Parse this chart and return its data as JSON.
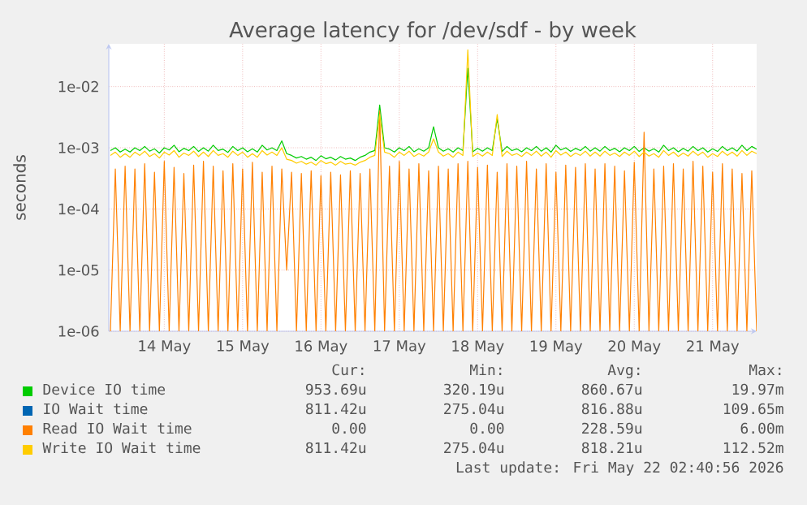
{
  "chart_data": {
    "type": "line",
    "title": "Average latency for /dev/sdf - by week",
    "ylabel": "seconds",
    "log": "y",
    "grid": true,
    "legend": "bottom",
    "marker": "none",
    "line_style": "solid",
    "xlim": [
      "2026-05-13T19:00",
      "2026-05-22T01:30"
    ],
    "xticks": [
      {
        "value": "2026-05-14T12:00",
        "label": "14 May"
      },
      {
        "value": "2026-05-15T12:00",
        "label": "15 May"
      },
      {
        "value": "2026-05-16T12:00",
        "label": "16 May"
      },
      {
        "value": "2026-05-17T12:00",
        "label": "17 May"
      },
      {
        "value": "2026-05-18T12:00",
        "label": "18 May"
      },
      {
        "value": "2026-05-19T12:00",
        "label": "19 May"
      },
      {
        "value": "2026-05-20T12:00",
        "label": "20 May"
      },
      {
        "value": "2026-05-21T12:00",
        "label": "21 May"
      }
    ],
    "ylim": [
      1e-06,
      0.05
    ],
    "yticks": [
      {
        "value": 1e-06,
        "label": "1e-06"
      },
      {
        "value": 1e-05,
        "label": "1e-05"
      },
      {
        "value": 0.0001,
        "label": "1e-04"
      },
      {
        "value": 0.001,
        "label": "1e-03"
      },
      {
        "value": 0.01,
        "label": "1e-02"
      }
    ],
    "x": [
      "2026-05-13T19:30",
      "2026-05-13T21:00",
      "2026-05-13T22:30",
      "2026-05-14T00:00",
      "2026-05-14T01:30",
      "2026-05-14T03:00",
      "2026-05-14T04:30",
      "2026-05-14T06:00",
      "2026-05-14T07:30",
      "2026-05-14T09:00",
      "2026-05-14T10:30",
      "2026-05-14T12:00",
      "2026-05-14T13:30",
      "2026-05-14T15:00",
      "2026-05-14T16:30",
      "2026-05-14T18:00",
      "2026-05-14T19:30",
      "2026-05-14T21:00",
      "2026-05-14T22:30",
      "2026-05-15T00:00",
      "2026-05-15T01:30",
      "2026-05-15T03:00",
      "2026-05-15T04:30",
      "2026-05-15T06:00",
      "2026-05-15T07:30",
      "2026-05-15T09:00",
      "2026-05-15T10:30",
      "2026-05-15T12:00",
      "2026-05-15T13:30",
      "2026-05-15T15:00",
      "2026-05-15T16:30",
      "2026-05-15T18:00",
      "2026-05-15T19:30",
      "2026-05-15T21:00",
      "2026-05-15T22:30",
      "2026-05-16T00:00",
      "2026-05-16T01:30",
      "2026-05-16T03:00",
      "2026-05-16T04:30",
      "2026-05-16T06:00",
      "2026-05-16T07:30",
      "2026-05-16T09:00",
      "2026-05-16T10:30",
      "2026-05-16T12:00",
      "2026-05-16T13:30",
      "2026-05-16T15:00",
      "2026-05-16T16:30",
      "2026-05-16T18:00",
      "2026-05-16T19:30",
      "2026-05-16T21:00",
      "2026-05-16T22:30",
      "2026-05-17T00:00",
      "2026-05-17T01:30",
      "2026-05-17T03:00",
      "2026-05-17T04:30",
      "2026-05-17T06:00",
      "2026-05-17T07:30",
      "2026-05-17T09:00",
      "2026-05-17T10:30",
      "2026-05-17T12:00",
      "2026-05-17T13:30",
      "2026-05-17T15:00",
      "2026-05-17T16:30",
      "2026-05-17T18:00",
      "2026-05-17T19:30",
      "2026-05-17T21:00",
      "2026-05-17T22:30",
      "2026-05-18T00:00",
      "2026-05-18T01:30",
      "2026-05-18T03:00",
      "2026-05-18T04:30",
      "2026-05-18T06:00",
      "2026-05-18T07:30",
      "2026-05-18T09:00",
      "2026-05-18T10:30",
      "2026-05-18T12:00",
      "2026-05-18T13:30",
      "2026-05-18T15:00",
      "2026-05-18T16:30",
      "2026-05-18T18:00",
      "2026-05-18T19:30",
      "2026-05-18T21:00",
      "2026-05-18T22:30",
      "2026-05-19T00:00",
      "2026-05-19T01:30",
      "2026-05-19T03:00",
      "2026-05-19T04:30",
      "2026-05-19T06:00",
      "2026-05-19T07:30",
      "2026-05-19T09:00",
      "2026-05-19T10:30",
      "2026-05-19T12:00",
      "2026-05-19T13:30",
      "2026-05-19T15:00",
      "2026-05-19T16:30",
      "2026-05-19T18:00",
      "2026-05-19T19:30",
      "2026-05-19T21:00",
      "2026-05-19T22:30",
      "2026-05-20T00:00",
      "2026-05-20T01:30",
      "2026-05-20T03:00",
      "2026-05-20T04:30",
      "2026-05-20T06:00",
      "2026-05-20T07:30",
      "2026-05-20T09:00",
      "2026-05-20T10:30",
      "2026-05-20T12:00",
      "2026-05-20T13:30",
      "2026-05-20T15:00",
      "2026-05-20T16:30",
      "2026-05-20T18:00",
      "2026-05-20T19:30",
      "2026-05-20T21:00",
      "2026-05-20T22:30",
      "2026-05-21T00:00",
      "2026-05-21T01:30",
      "2026-05-21T03:00",
      "2026-05-21T04:30",
      "2026-05-21T06:00",
      "2026-05-21T07:30",
      "2026-05-21T09:00",
      "2026-05-21T10:30",
      "2026-05-21T12:00",
      "2026-05-21T13:30",
      "2026-05-21T15:00",
      "2026-05-21T16:30",
      "2026-05-21T18:00",
      "2026-05-21T19:30",
      "2026-05-21T21:00",
      "2026-05-21T22:30",
      "2026-05-22T00:00",
      "2026-05-22T01:30"
    ],
    "series": [
      {
        "name": "Device IO time",
        "color": "#00cc00",
        "values": [
          0.0009,
          0.001,
          0.00085,
          0.00095,
          0.00085,
          0.001,
          0.0009,
          0.00105,
          0.00088,
          0.00096,
          0.00082,
          0.001,
          0.00092,
          0.0011,
          0.00086,
          0.00098,
          0.0009,
          0.00105,
          0.00087,
          0.001,
          0.00088,
          0.0011,
          0.0009,
          0.00095,
          0.00084,
          0.00105,
          0.0009,
          0.001,
          0.00086,
          0.00096,
          0.00085,
          0.0011,
          0.00092,
          0.001,
          0.0009,
          0.0013,
          0.0008,
          0.00075,
          0.00068,
          0.00072,
          0.00065,
          0.0007,
          0.00062,
          0.00074,
          0.00066,
          0.0007,
          0.00063,
          0.00072,
          0.00065,
          0.00068,
          0.00062,
          0.0007,
          0.00075,
          0.00085,
          0.0009,
          0.005,
          0.001,
          0.00095,
          0.00085,
          0.001,
          0.0009,
          0.00105,
          0.00086,
          0.00096,
          0.00088,
          0.001,
          0.0022,
          0.001,
          0.00088,
          0.00096,
          0.00085,
          0.001,
          0.0009,
          0.02,
          0.00086,
          0.00098,
          0.00088,
          0.001,
          0.0009,
          0.003,
          0.00087,
          0.00105,
          0.0009,
          0.00096,
          0.00086,
          0.001,
          0.0009,
          0.00105,
          0.00088,
          0.001,
          0.00085,
          0.0011,
          0.00092,
          0.001,
          0.00087,
          0.00098,
          0.0009,
          0.00105,
          0.00088,
          0.001,
          0.00088,
          0.00105,
          0.0009,
          0.00098,
          0.00086,
          0.001,
          0.0009,
          0.00105,
          0.00087,
          0.001,
          0.00088,
          0.00096,
          0.00085,
          0.0011,
          0.0009,
          0.001,
          0.00086,
          0.00098,
          0.00088,
          0.00105,
          0.0009,
          0.001,
          0.00085,
          0.00096,
          0.00087,
          0.00105,
          0.0009,
          0.001,
          0.00088,
          0.0011,
          0.0009,
          0.00105,
          0.00095
        ]
      },
      {
        "name": "IO Wait time",
        "color": "#0066b3",
        "values": [
          null,
          null,
          null,
          null,
          null,
          null,
          null,
          null,
          null,
          null,
          null,
          null,
          null,
          null,
          null,
          null,
          null,
          null,
          null,
          null,
          null,
          null,
          null,
          null,
          null,
          null,
          null,
          null,
          null,
          null,
          null,
          null,
          null,
          null,
          null,
          null,
          null,
          null,
          null,
          null,
          null,
          null,
          null,
          null,
          null,
          null,
          null,
          null,
          null,
          null,
          null,
          null,
          null,
          null,
          null,
          null,
          null,
          null,
          null,
          null,
          null,
          null,
          null,
          null,
          null,
          null,
          null,
          null,
          null,
          null,
          null,
          null,
          null,
          null,
          null,
          null,
          null,
          null,
          null,
          null,
          null,
          null,
          null,
          null,
          null,
          null,
          null,
          null,
          null,
          null,
          null,
          null,
          null,
          null,
          null,
          null,
          null,
          null,
          null,
          null,
          null,
          null,
          null,
          null,
          null,
          null,
          null,
          null,
          null,
          null,
          null,
          null,
          null,
          null,
          null,
          null,
          null,
          null,
          null,
          null,
          null,
          null,
          null,
          null,
          null,
          null,
          null,
          null,
          null,
          null,
          null,
          null,
          null
        ]
      },
      {
        "name": "Read IO Wait time",
        "color": "#ff8000",
        "values": [
          1e-06,
          0.00045,
          1e-06,
          0.0005,
          1e-06,
          0.00045,
          1e-06,
          0.00055,
          1e-06,
          0.0004,
          1e-06,
          0.0006,
          1e-06,
          0.00048,
          1e-06,
          0.00038,
          1e-06,
          0.00052,
          1e-06,
          0.0006,
          1e-06,
          0.0005,
          1e-06,
          0.00042,
          1e-06,
          0.00055,
          1e-06,
          0.00045,
          1e-06,
          0.00058,
          1e-06,
          0.0004,
          1e-06,
          0.0005,
          1e-06,
          0.00045,
          1e-05,
          0.0004,
          1e-06,
          0.00038,
          1e-06,
          0.00042,
          1e-06,
          0.00035,
          1e-06,
          0.0004,
          1e-06,
          0.00036,
          1e-06,
          0.00042,
          1e-06,
          0.00038,
          1e-06,
          0.00045,
          1e-06,
          0.004,
          1e-06,
          0.0005,
          1e-06,
          0.0006,
          1e-06,
          0.00045,
          1e-06,
          0.00055,
          1e-06,
          0.00042,
          1e-06,
          0.0005,
          1e-06,
          0.00045,
          1e-06,
          0.00055,
          1e-06,
          0.0006,
          1e-06,
          0.00048,
          1e-06,
          0.00052,
          1e-06,
          0.0004,
          1e-06,
          0.00055,
          1e-06,
          0.0005,
          1e-06,
          0.0006,
          1e-06,
          0.00045,
          1e-06,
          0.00055,
          1e-06,
          0.0004,
          1e-06,
          0.00052,
          1e-06,
          0.00048,
          1e-06,
          0.00055,
          1e-06,
          0.00045,
          1e-06,
          0.00055,
          1e-06,
          0.0005,
          1e-06,
          0.00042,
          1e-06,
          0.00058,
          1e-06,
          0.0018,
          1e-06,
          0.00045,
          1e-06,
          0.0005,
          1e-06,
          0.00055,
          1e-06,
          0.00045,
          1e-06,
          0.0006,
          1e-06,
          0.0005,
          1e-06,
          0.0004,
          1e-06,
          0.00055,
          1e-06,
          0.00045,
          1e-06,
          0.00038,
          1e-06,
          0.00042,
          1e-06
        ]
      },
      {
        "name": "Write IO Wait time",
        "color": "#ffcc00",
        "values": [
          0.00075,
          0.00085,
          0.0007,
          0.0008,
          0.0007,
          0.00085,
          0.00075,
          0.00088,
          0.00072,
          0.0008,
          0.00068,
          0.00085,
          0.00076,
          0.0009,
          0.0007,
          0.00082,
          0.00075,
          0.00088,
          0.00072,
          0.00085,
          0.00072,
          0.0009,
          0.00075,
          0.0008,
          0.0007,
          0.00088,
          0.00075,
          0.00085,
          0.0007,
          0.0008,
          0.0007,
          0.0009,
          0.00076,
          0.00085,
          0.00075,
          0.001,
          0.00065,
          0.00062,
          0.00056,
          0.0006,
          0.00054,
          0.00058,
          0.00052,
          0.00062,
          0.00055,
          0.00058,
          0.00052,
          0.0006,
          0.00054,
          0.00056,
          0.00052,
          0.00058,
          0.00062,
          0.0007,
          0.00075,
          0.0035,
          0.00085,
          0.0008,
          0.0007,
          0.00085,
          0.00075,
          0.00088,
          0.00072,
          0.0008,
          0.00073,
          0.00085,
          0.0014,
          0.00085,
          0.00073,
          0.0008,
          0.0007,
          0.00085,
          0.00075,
          0.04,
          0.00072,
          0.00082,
          0.00073,
          0.00085,
          0.00075,
          0.0035,
          0.00072,
          0.00088,
          0.00075,
          0.0008,
          0.00072,
          0.00085,
          0.00075,
          0.00088,
          0.00073,
          0.00085,
          0.0007,
          0.0009,
          0.00076,
          0.00085,
          0.00072,
          0.00082,
          0.00075,
          0.00088,
          0.00073,
          0.00085,
          0.00073,
          0.00088,
          0.00075,
          0.00082,
          0.00072,
          0.00085,
          0.00075,
          0.00088,
          0.00072,
          0.00085,
          0.00073,
          0.0008,
          0.0007,
          0.0009,
          0.00075,
          0.00085,
          0.00072,
          0.00082,
          0.00073,
          0.00088,
          0.00075,
          0.00085,
          0.0007,
          0.0008,
          0.00072,
          0.00088,
          0.00075,
          0.00085,
          0.00073,
          0.0009,
          0.00075,
          0.00088,
          0.0008
        ]
      }
    ],
    "annotations": [
      "Cur:",
      "Min:",
      "Avg:",
      "Max:",
      "953.69u",
      "320.19u",
      "860.67u",
      "19.97m",
      "811.42u",
      "275.04u",
      "816.88u",
      "109.65m",
      "0.00",
      "0.00",
      "228.59u",
      "6.00m",
      "811.42u",
      "275.04u",
      "818.21u",
      "112.52m",
      "Last update: Fri May 22 02:40:56 2026"
    ]
  }
}
